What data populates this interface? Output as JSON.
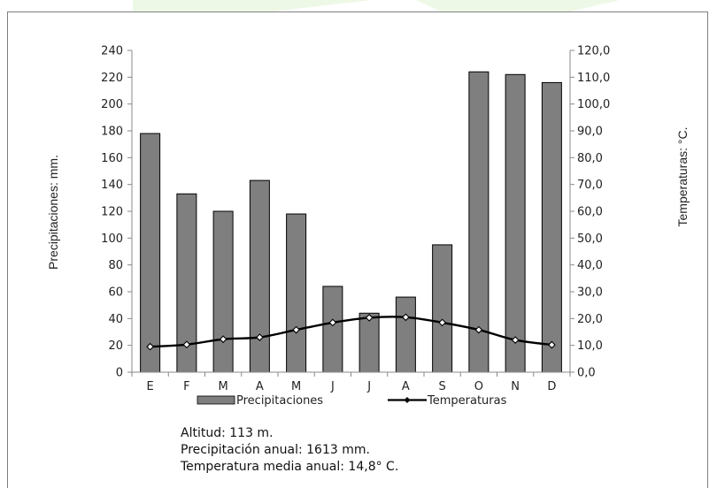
{
  "colors": {
    "bar_fill": "#7f7f7f",
    "bar_stroke": "#000000",
    "line": "#000000",
    "marker_fill": "#ffffff",
    "frame": "#7f7f7f",
    "watermark": "#eaf6e0"
  },
  "chart_data": {
    "type": "bar+line",
    "categories": [
      "E",
      "F",
      "M",
      "A",
      "M",
      "J",
      "J",
      "A",
      "S",
      "O",
      "N",
      "D"
    ],
    "series": [
      {
        "name": "Precipitaciones",
        "type": "bar",
        "axis": "left",
        "values": [
          178,
          133,
          120,
          143,
          118,
          64,
          44,
          56,
          95,
          224,
          222,
          216
        ]
      },
      {
        "name": "Temperaturas",
        "type": "line",
        "axis": "right",
        "values": [
          9.5,
          10.3,
          12.3,
          13.0,
          15.8,
          18.5,
          20.3,
          20.5,
          18.5,
          15.8,
          12.0,
          10.2
        ]
      }
    ],
    "ylabel_left": "Precipitaciones: mm.",
    "ylabel_right": "Temperaturas: °C.",
    "ylim_left": [
      0,
      240
    ],
    "ylim_right": [
      0,
      120
    ],
    "yticks_left": [
      "0",
      "20",
      "40",
      "60",
      "80",
      "100",
      "120",
      "140",
      "160",
      "180",
      "200",
      "220",
      "240"
    ],
    "yticks_right": [
      "0,0",
      "10,0",
      "20,0",
      "30,0",
      "40,0",
      "50,0",
      "60,0",
      "70,0",
      "80,0",
      "90,0",
      "100,0",
      "110,0",
      "120,0"
    ],
    "grid": false,
    "legend_position": "bottom"
  },
  "info": {
    "altitud": "Altitud: 113 m.",
    "precipitacion": "Precipitación anual: 1613 mm.",
    "temperatura": "Temperatura media anual: 14,8° C."
  }
}
